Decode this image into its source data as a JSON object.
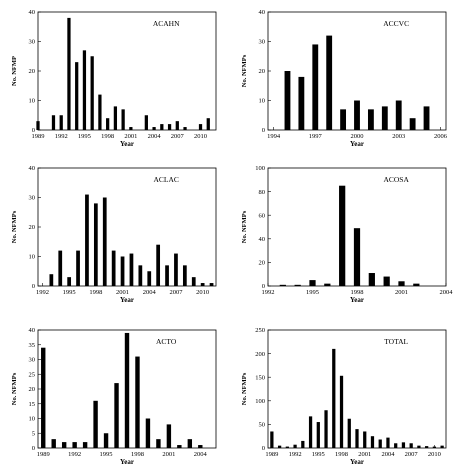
{
  "chart_data": [
    {
      "type": "bar",
      "title": "ACAHN",
      "xlabel": "Year",
      "ylabel": "No. NFMP",
      "xlim": [
        1989,
        2012
      ],
      "ylim": [
        0,
        40
      ],
      "yticks": [
        0,
        10,
        20,
        30,
        40
      ],
      "xticks": [
        1989,
        1992,
        1995,
        1998,
        2001,
        2004,
        2007,
        2010
      ],
      "x": [
        1989,
        1991,
        1992,
        1993,
        1994,
        1995,
        1996,
        1997,
        1998,
        1999,
        2000,
        2001,
        2003,
        2004,
        2005,
        2006,
        2007,
        2008,
        2010,
        2011
      ],
      "values": [
        3,
        5,
        5,
        38,
        23,
        27,
        25,
        12,
        4,
        8,
        7,
        1,
        5,
        1,
        2,
        2,
        3,
        1,
        2,
        4
      ]
    },
    {
      "type": "bar",
      "title": "ACCVC",
      "xlabel": "Year",
      "ylabel": "No. NFMPs",
      "xlim": [
        1993.6,
        2006.4
      ],
      "ylim": [
        0,
        40
      ],
      "yticks": [
        0,
        10,
        20,
        30,
        40
      ],
      "xticks": [
        1994,
        1997,
        2000,
        2003,
        2006
      ],
      "x": [
        1995,
        1996,
        1997,
        1998,
        1999,
        2000,
        2001,
        2002,
        2003,
        2004,
        2005
      ],
      "values": [
        20,
        18,
        29,
        32,
        7,
        10,
        7,
        8,
        10,
        4,
        8
      ]
    },
    {
      "type": "bar",
      "title": "ACLAC",
      "xlabel": "Year",
      "ylabel": "No. NFMPs",
      "xlim": [
        1991.5,
        2011.5
      ],
      "ylim": [
        0,
        40
      ],
      "yticks": [
        0,
        10,
        20,
        30,
        40
      ],
      "xticks": [
        1992,
        1995,
        1998,
        2001,
        2004,
        2007,
        2010
      ],
      "x": [
        1993,
        1994,
        1995,
        1996,
        1997,
        1998,
        1999,
        2000,
        2001,
        2002,
        2003,
        2004,
        2005,
        2006,
        2007,
        2008,
        2009,
        2010,
        2011
      ],
      "values": [
        4,
        12,
        3,
        12,
        31,
        28,
        30,
        12,
        10,
        11,
        7,
        5,
        14,
        7,
        11,
        7,
        3,
        1,
        1
      ]
    },
    {
      "type": "bar",
      "title": "ACOSA",
      "xlabel": "Year",
      "ylabel": "No. NFMPs",
      "xlim": [
        1992,
        2004
      ],
      "ylim": [
        0,
        100
      ],
      "yticks": [
        0,
        20,
        40,
        60,
        80,
        100
      ],
      "xticks": [
        1992,
        1995,
        1998,
        2001,
        2004
      ],
      "x": [
        1993,
        1994,
        1995,
        1996,
        1997,
        1998,
        1999,
        2000,
        2001,
        2002
      ],
      "values": [
        1,
        1,
        5,
        2,
        85,
        49,
        11,
        8,
        4,
        2
      ]
    },
    {
      "type": "bar",
      "title": "ACTO",
      "xlabel": "Year",
      "ylabel": "No. NFMPs",
      "xlim": [
        1988.5,
        2005.5
      ],
      "ylim": [
        0,
        40
      ],
      "yticks": [
        0,
        5,
        10,
        15,
        20,
        25,
        30,
        35,
        40
      ],
      "xticks": [
        1989,
        1992,
        1995,
        1998,
        2001,
        2004
      ],
      "x": [
        1989,
        1990,
        1991,
        1992,
        1993,
        1994,
        1995,
        1996,
        1997,
        1998,
        1999,
        2000,
        2001,
        2002,
        2003,
        2004
      ],
      "values": [
        34,
        3,
        2,
        2,
        2,
        16,
        5,
        22,
        39,
        31,
        10,
        3,
        8,
        1,
        3,
        1
      ]
    },
    {
      "type": "bar",
      "title": "TOTAL",
      "xlabel": "Year",
      "ylabel": "No. NFMPs",
      "xlim": [
        1988.5,
        2011.5
      ],
      "ylim": [
        0,
        250
      ],
      "yticks": [
        0,
        50,
        100,
        150,
        200,
        250
      ],
      "xticks": [
        1989,
        1992,
        1995,
        1998,
        2001,
        2004,
        2007,
        2010
      ],
      "x": [
        1989,
        1990,
        1991,
        1992,
        1993,
        1994,
        1995,
        1996,
        1997,
        1998,
        1999,
        2000,
        2001,
        2002,
        2003,
        2004,
        2005,
        2006,
        2007,
        2008,
        2009,
        2010,
        2011
      ],
      "values": [
        35,
        5,
        3,
        7,
        15,
        67,
        55,
        80,
        210,
        153,
        62,
        40,
        35,
        25,
        18,
        22,
        10,
        12,
        10,
        5,
        4,
        3,
        5
      ]
    }
  ]
}
